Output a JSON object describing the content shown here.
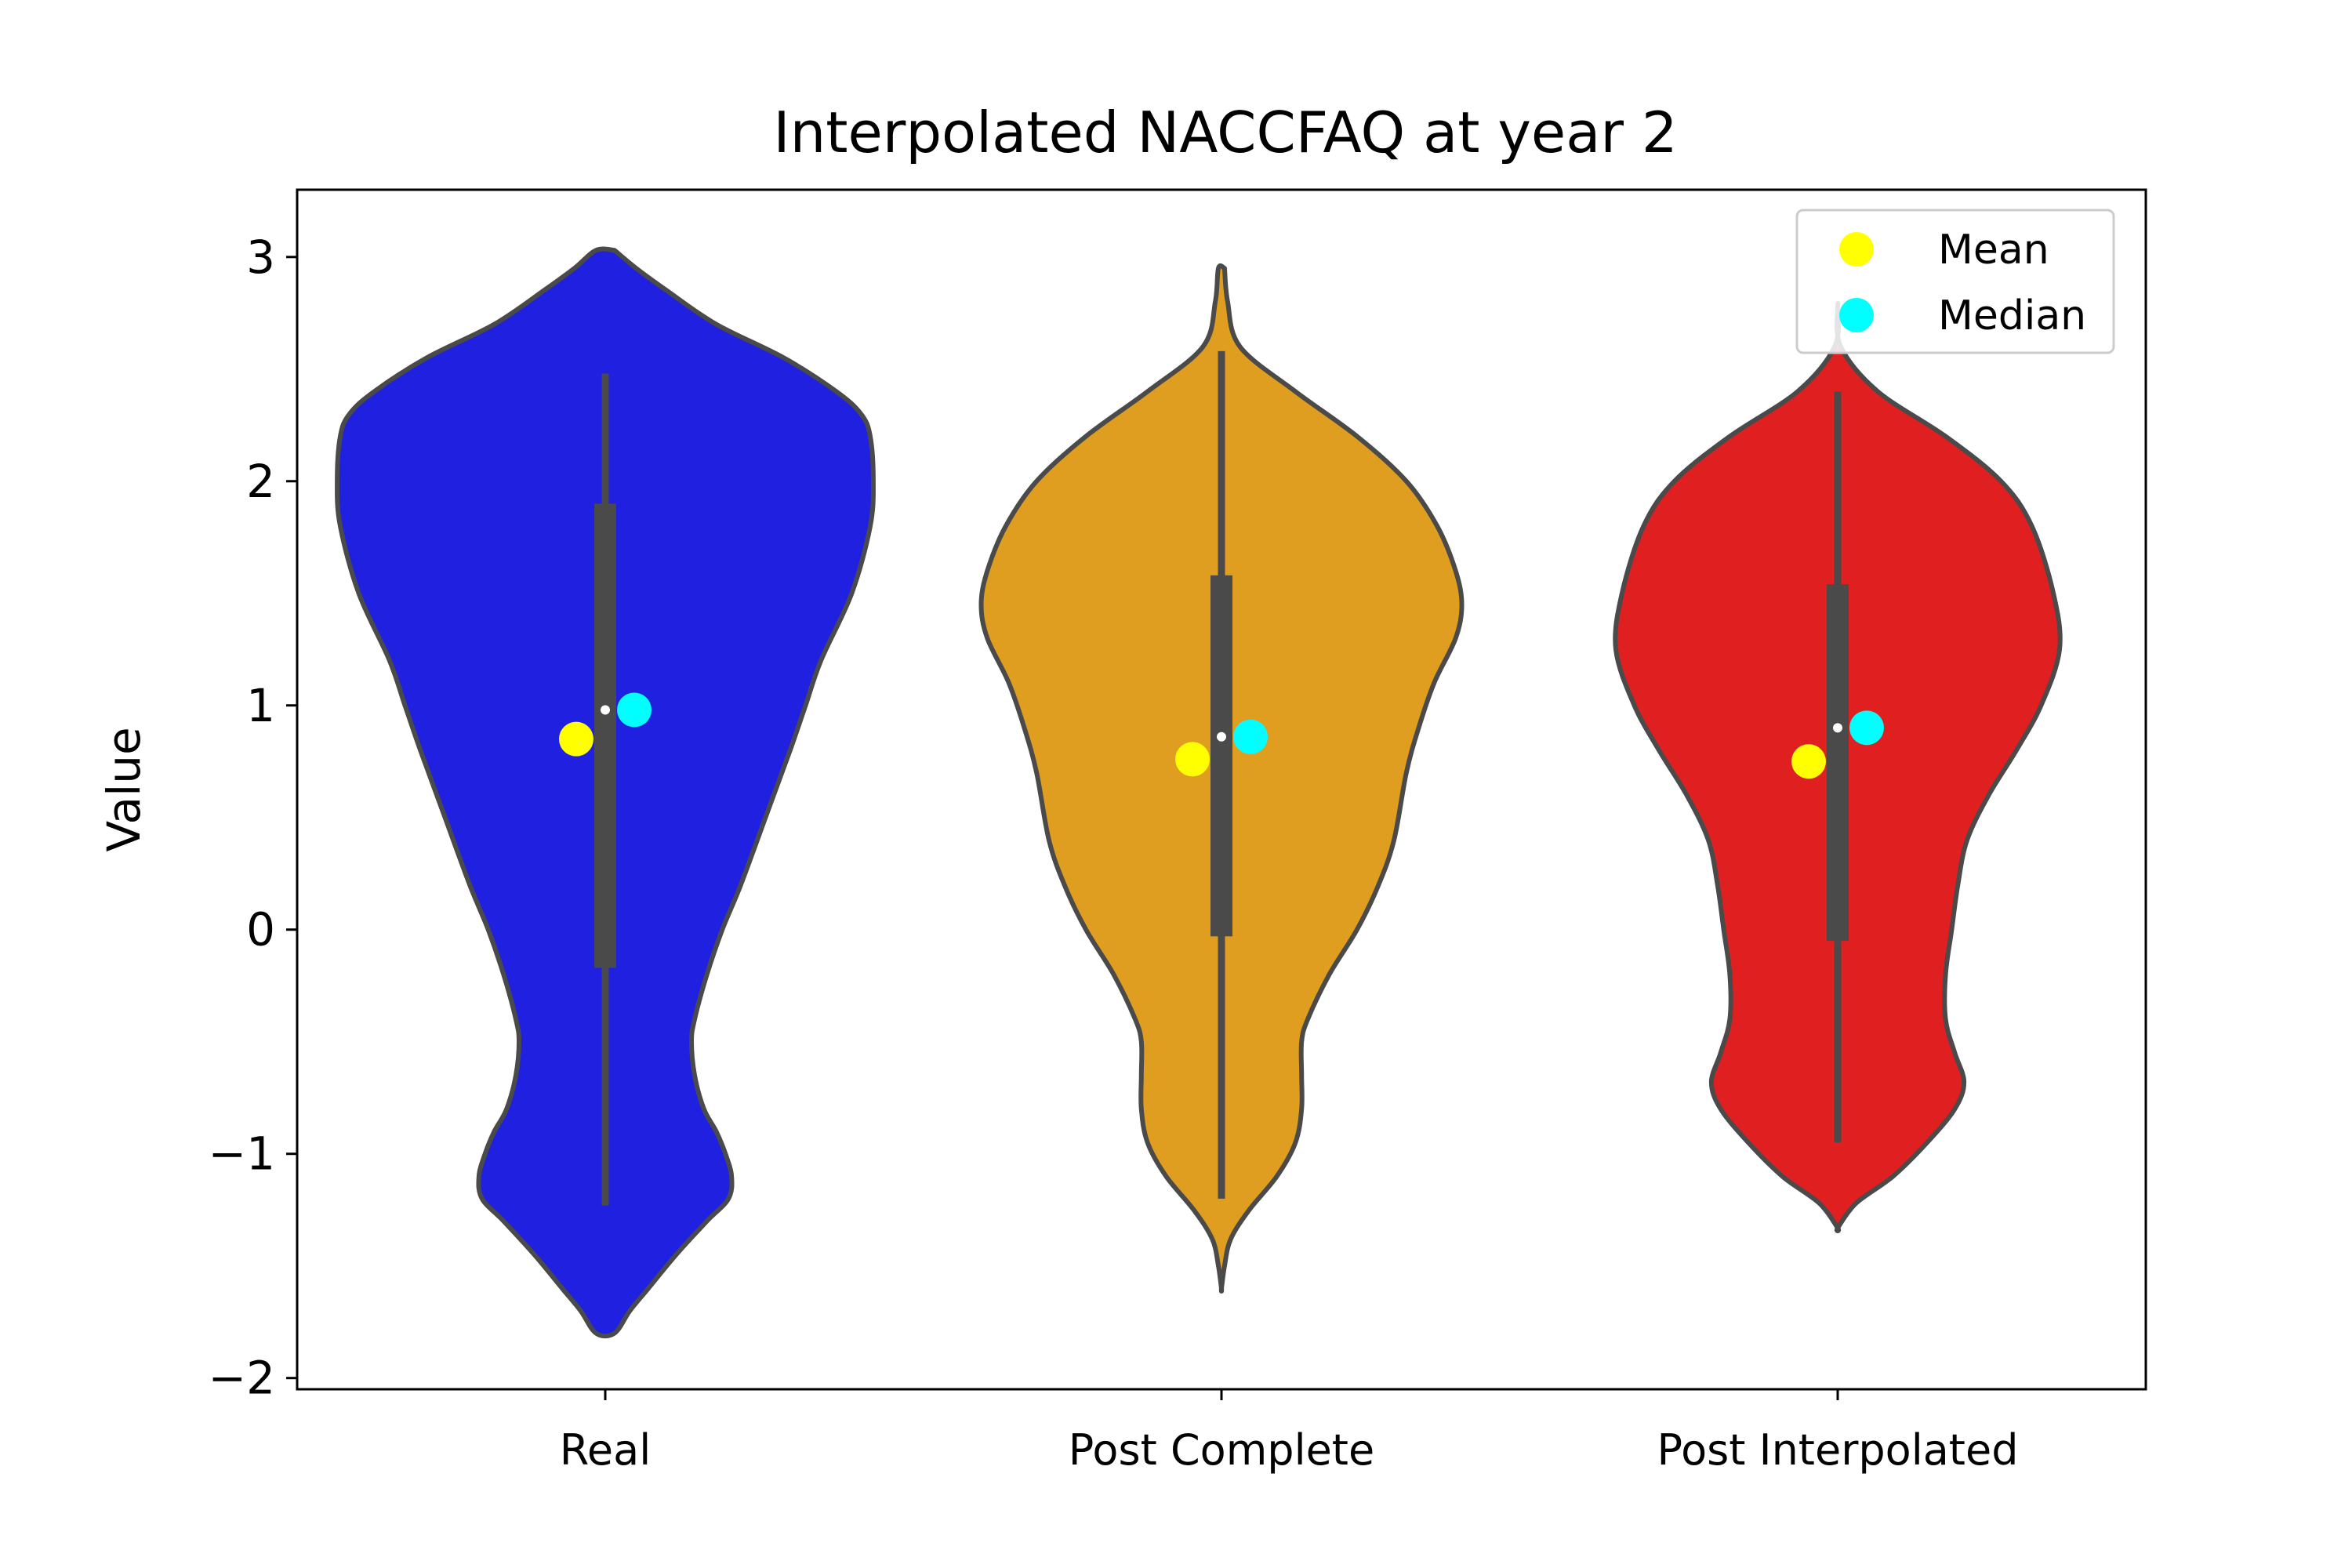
{
  "chart_data": {
    "type": "violin",
    "title": "Interpolated NACCFAQ at year 2",
    "xlabel": "",
    "ylabel": "Value",
    "ylim": [
      -2.05,
      3.3
    ],
    "yticks": [
      -2,
      -1,
      0,
      1,
      2,
      3
    ],
    "ytick_labels": [
      "−2",
      "−1",
      "0",
      "1",
      "2",
      "3"
    ],
    "categories": [
      "Real",
      "Post Complete",
      "Post Interpolated"
    ],
    "legend": {
      "placement": "top-right",
      "entries": [
        {
          "label": "Mean",
          "color": "#ffff00"
        },
        {
          "label": "Median",
          "color": "#00ffff"
        }
      ]
    },
    "series": [
      {
        "category": "Real",
        "color": "#2020e0",
        "range": [
          -1.8,
          3.03
        ],
        "whisker": [
          -1.23,
          2.48
        ],
        "quartiles": [
          -0.17,
          1.9
        ],
        "inner_median": 0.98,
        "mean": 0.85,
        "median": 0.98,
        "profile": [
          [
            3.03,
            0.03
          ],
          [
            2.95,
            0.1
          ],
          [
            2.85,
            0.2
          ],
          [
            2.7,
            0.36
          ],
          [
            2.55,
            0.58
          ],
          [
            2.4,
            0.75
          ],
          [
            2.3,
            0.83
          ],
          [
            2.2,
            0.86
          ],
          [
            2.0,
            0.87
          ],
          [
            1.8,
            0.86
          ],
          [
            1.5,
            0.8
          ],
          [
            1.2,
            0.7
          ],
          [
            1.0,
            0.65
          ],
          [
            0.8,
            0.6
          ],
          [
            0.5,
            0.52
          ],
          [
            0.2,
            0.44
          ],
          [
            0.0,
            0.38
          ],
          [
            -0.2,
            0.33
          ],
          [
            -0.4,
            0.29
          ],
          [
            -0.5,
            0.28
          ],
          [
            -0.65,
            0.29
          ],
          [
            -0.8,
            0.32
          ],
          [
            -0.9,
            0.36
          ],
          [
            -1.0,
            0.39
          ],
          [
            -1.1,
            0.41
          ],
          [
            -1.2,
            0.4
          ],
          [
            -1.3,
            0.33
          ],
          [
            -1.45,
            0.23
          ],
          [
            -1.6,
            0.14
          ],
          [
            -1.7,
            0.08
          ],
          [
            -1.8,
            0.03
          ]
        ]
      },
      {
        "category": "Post Complete",
        "color": "#e09e20",
        "range": [
          -1.6,
          2.95
        ],
        "whisker": [
          -1.2,
          2.58
        ],
        "quartiles": [
          -0.03,
          1.58
        ],
        "inner_median": 0.86,
        "mean": 0.76,
        "median": 0.86,
        "profile": [
          [
            2.95,
            0.01
          ],
          [
            2.8,
            0.02
          ],
          [
            2.6,
            0.06
          ],
          [
            2.4,
            0.24
          ],
          [
            2.2,
            0.44
          ],
          [
            2.0,
            0.6
          ],
          [
            1.8,
            0.7
          ],
          [
            1.6,
            0.76
          ],
          [
            1.45,
            0.78
          ],
          [
            1.3,
            0.76
          ],
          [
            1.1,
            0.69
          ],
          [
            0.9,
            0.64
          ],
          [
            0.7,
            0.6
          ],
          [
            0.4,
            0.56
          ],
          [
            0.2,
            0.51
          ],
          [
            0.0,
            0.44
          ],
          [
            -0.2,
            0.35
          ],
          [
            -0.4,
            0.28
          ],
          [
            -0.5,
            0.26
          ],
          [
            -0.65,
            0.26
          ],
          [
            -0.8,
            0.26
          ],
          [
            -0.95,
            0.24
          ],
          [
            -1.1,
            0.18
          ],
          [
            -1.25,
            0.09
          ],
          [
            -1.38,
            0.03
          ],
          [
            -1.5,
            0.01
          ],
          [
            -1.6,
            0.0
          ]
        ]
      },
      {
        "category": "Post Interpolated",
        "color": "#e02020",
        "range": [
          -1.33,
          2.78
        ],
        "whisker": [
          -0.95,
          2.4
        ],
        "quartiles": [
          -0.05,
          1.54
        ],
        "inner_median": 0.9,
        "mean": 0.75,
        "median": 0.9,
        "profile": [
          [
            2.78,
            0.0
          ],
          [
            2.6,
            0.01
          ],
          [
            2.4,
            0.13
          ],
          [
            2.2,
            0.35
          ],
          [
            2.0,
            0.53
          ],
          [
            1.8,
            0.63
          ],
          [
            1.5,
            0.7
          ],
          [
            1.25,
            0.72
          ],
          [
            1.0,
            0.66
          ],
          [
            0.8,
            0.58
          ],
          [
            0.6,
            0.49
          ],
          [
            0.4,
            0.42
          ],
          [
            0.2,
            0.39
          ],
          [
            0.0,
            0.37
          ],
          [
            -0.2,
            0.35
          ],
          [
            -0.4,
            0.35
          ],
          [
            -0.55,
            0.38
          ],
          [
            -0.68,
            0.41
          ],
          [
            -0.8,
            0.38
          ],
          [
            -0.95,
            0.29
          ],
          [
            -1.1,
            0.18
          ],
          [
            -1.22,
            0.06
          ],
          [
            -1.33,
            0.0
          ]
        ]
      }
    ]
  }
}
